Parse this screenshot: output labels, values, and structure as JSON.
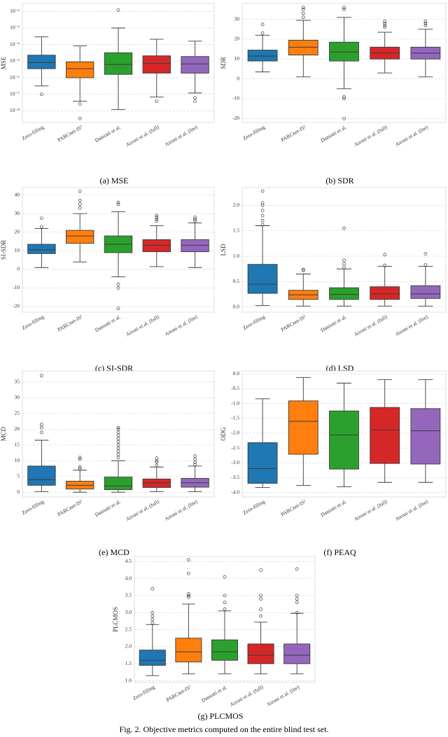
{
  "chart_data": [
    {
      "type": "box",
      "caption": "(a) MSE",
      "ylabel": "MSE",
      "log_y": true,
      "grid": true,
      "categories": [
        "Zero-filling",
        "PARCnet-IS²",
        "Daniotti et al.",
        "Aironi et al. (full)",
        "Aironi et al. (lite)"
      ],
      "colors": [
        "#1f77b4",
        "#ff7f0e",
        "#2ca02c",
        "#d62728",
        "#9467bd"
      ],
      "ylim": [
        2e-09,
        0.03
      ],
      "yticks": [
        {
          "value": 0.01,
          "label": "10⁻²"
        },
        {
          "value": 0.001,
          "label": "10⁻³"
        },
        {
          "value": 0.0001,
          "label": "10⁻⁴"
        },
        {
          "value": 1e-05,
          "label": "10⁻⁵"
        },
        {
          "value": 1e-06,
          "label": "10⁻⁶"
        },
        {
          "value": 1e-07,
          "label": "10⁻⁷"
        },
        {
          "value": 1e-08,
          "label": "10⁻⁸"
        }
      ],
      "boxes": [
        {
          "high": 0.00029,
          "q3": 2.3e-05,
          "median": 8.3e-06,
          "q1": 3.5e-06,
          "low": 3.2e-07,
          "outliers": [
            1e-07
          ]
        },
        {
          "high": 8.3e-05,
          "q3": 9.1e-06,
          "median": 3.5e-06,
          "q1": 1e-06,
          "low": 3.8e-08,
          "outliers": [
            2.6e-08,
            3.5e-09
          ]
        },
        {
          "high": 0.001,
          "q3": 3.2e-05,
          "median": 6.3e-06,
          "q1": 1.6e-06,
          "low": 1.2e-08,
          "outliers": [
            0.012
          ]
        },
        {
          "high": 0.00021,
          "q3": 2.1e-05,
          "median": 7.4e-06,
          "q1": 1.9e-06,
          "low": 6.8e-08,
          "outliers": [
            3.8e-08
          ]
        },
        {
          "high": 0.00016,
          "q3": 1.9e-05,
          "median": 6.8e-06,
          "q1": 1.9e-06,
          "low": 1.2e-07,
          "outliers": [
            6.2e-08,
            3.8e-08
          ]
        }
      ]
    },
    {
      "type": "box",
      "caption": "(b) SDR",
      "ylabel": "SDR",
      "grid": true,
      "categories": [
        "Zero-filling",
        "PARCnet-IS²",
        "Daniotti et al.",
        "Aironi et al. (full)",
        "Aironi et al. (lite)"
      ],
      "colors": [
        "#1f77b4",
        "#ff7f0e",
        "#2ca02c",
        "#d62728",
        "#9467bd"
      ],
      "ylim": [
        -22,
        38
      ],
      "yticks": [
        -20,
        -10,
        0,
        10,
        20,
        30
      ],
      "boxes": [
        {
          "high": 22,
          "q3": 14.5,
          "median": 11.5,
          "q1": 9,
          "low": 3.5,
          "outliers": [
            23,
            27.5
          ]
        },
        {
          "high": 29.5,
          "q3": 19.5,
          "median": 16,
          "q1": 12,
          "low": 1,
          "outliers": [
            31,
            33,
            35,
            36
          ]
        },
        {
          "high": 31,
          "q3": 18.5,
          "median": 13.5,
          "q1": 9,
          "low": -5,
          "outliers": [
            35,
            36,
            -9,
            -10,
            -20
          ]
        },
        {
          "high": 23.5,
          "q3": 16,
          "median": 13,
          "q1": 10,
          "low": 3,
          "outliers": [
            26,
            27,
            28,
            29
          ]
        },
        {
          "high": 25,
          "q3": 16,
          "median": 13,
          "q1": 10,
          "low": 1,
          "outliers": [
            27,
            28,
            29
          ]
        }
      ]
    },
    {
      "type": "box",
      "caption": "(c) SI-SDR",
      "ylabel": "SI-SDR",
      "grid": true,
      "categories": [
        "Zero-filling",
        "PARCnet-IS²",
        "Daniotti et al.",
        "Aironi et al. (full)",
        "Aironi et al. (lite)"
      ],
      "colors": [
        "#1f77b4",
        "#ff7f0e",
        "#2ca02c",
        "#d62728",
        "#9467bd"
      ],
      "ylim": [
        -23,
        44
      ],
      "yticks": [
        -20,
        -10,
        0,
        10,
        20,
        30,
        40
      ],
      "boxes": [
        {
          "high": 22,
          "q3": 13.5,
          "median": 10.5,
          "q1": 8.5,
          "low": 1,
          "outliers": [
            23,
            27.5
          ]
        },
        {
          "high": 30,
          "q3": 21,
          "median": 18,
          "q1": 14,
          "low": 4,
          "outliers": [
            33,
            35,
            37,
            42
          ]
        },
        {
          "high": 31,
          "q3": 18,
          "median": 13.5,
          "q1": 9,
          "low": -4,
          "outliers": [
            35,
            36,
            -8,
            -10,
            -21
          ]
        },
        {
          "high": 23.5,
          "q3": 16,
          "median": 13,
          "q1": 9.5,
          "low": 1.5,
          "outliers": [
            26,
            27,
            28,
            29
          ]
        },
        {
          "high": 25,
          "q3": 16,
          "median": 13,
          "q1": 9.5,
          "low": 1,
          "outliers": [
            26,
            27,
            28
          ]
        }
      ]
    },
    {
      "type": "box",
      "caption": "(d) LSD",
      "ylabel": "LSD",
      "grid": true,
      "categories": [
        "Zero-filling",
        "PARCnet-IS²",
        "Daniotti et al.",
        "Aironi et al. (full)",
        "Aironi et al. (lite)"
      ],
      "colors": [
        "#1f77b4",
        "#ff7f0e",
        "#2ca02c",
        "#d62728",
        "#9467bd"
      ],
      "ylim": [
        -0.1,
        2.35
      ],
      "yticks": [
        {
          "value": 0,
          "label": "0.0"
        },
        0.5,
        {
          "value": 1,
          "label": "1.0"
        },
        1.5,
        {
          "value": 2,
          "label": "2.0"
        }
      ],
      "boxes": [
        {
          "high": 1.6,
          "q3": 0.84,
          "median": 0.45,
          "q1": 0.27,
          "low": 0.03,
          "outliers": [
            1.62,
            1.7,
            1.8,
            1.9,
            2.0,
            2.05,
            2.28
          ]
        },
        {
          "high": 0.65,
          "q3": 0.33,
          "median": 0.24,
          "q1": 0.15,
          "low": 0.02,
          "outliers": [
            0.72,
            0.74
          ]
        },
        {
          "high": 0.75,
          "q3": 0.38,
          "median": 0.25,
          "q1": 0.15,
          "low": 0.02,
          "outliers": [
            0.78,
            0.85,
            0.92,
            1.55
          ]
        },
        {
          "high": 0.8,
          "q3": 0.4,
          "median": 0.26,
          "q1": 0.15,
          "low": 0.02,
          "outliers": [
            0.82,
            1.03
          ]
        },
        {
          "high": 0.8,
          "q3": 0.42,
          "median": 0.26,
          "q1": 0.17,
          "low": 0.02,
          "outliers": [
            0.83,
            1.05
          ]
        }
      ]
    },
    {
      "type": "box",
      "caption": "(e) MCD",
      "ylabel": "MCD",
      "grid": true,
      "categories": [
        "Zero-filling",
        "PARCnet-IS²",
        "Daniotti et al.",
        "Aironi et al. (full)",
        "Aironi et al. (lite)"
      ],
      "colors": [
        "#1f77b4",
        "#ff7f0e",
        "#2ca02c",
        "#d62728",
        "#9467bd"
      ],
      "ylim": [
        -1.5,
        38.5
      ],
      "yticks": [
        0,
        5,
        10,
        15,
        20,
        25,
        30,
        35
      ],
      "boxes": [
        {
          "high": 16.5,
          "q3": 8.3,
          "median": 4,
          "q1": 2.2,
          "low": 0.2,
          "outliers": [
            19,
            20.5,
            21.5,
            37
          ]
        },
        {
          "high": 7,
          "q3": 3.5,
          "median": 2.2,
          "q1": 1,
          "low": 0,
          "outliers": [
            7.5,
            8,
            10.5,
            11
          ]
        },
        {
          "high": 10,
          "q3": 4.8,
          "median": 2,
          "q1": 0.8,
          "low": 0,
          "outliers": [
            11,
            12,
            13,
            14,
            15,
            16,
            17,
            18,
            19,
            20,
            20.5
          ]
        },
        {
          "high": 8,
          "q3": 4.2,
          "median": 3,
          "q1": 1.5,
          "low": 0.2,
          "outliers": [
            8.5,
            9.5,
            10,
            10.8
          ]
        },
        {
          "high": 8.3,
          "q3": 4.4,
          "median": 3,
          "q1": 1.6,
          "low": 0.2,
          "outliers": [
            8.8,
            9.5,
            10.5,
            11.5
          ]
        }
      ]
    },
    {
      "type": "box",
      "caption": "(f) PEAQ",
      "ylabel": "ODG",
      "grid": true,
      "categories": [
        "Zero-filling",
        "PARCnet-IS²",
        "Daniotti et al.",
        "Aironi et al. (full)",
        "Aironi et al. (lite)"
      ],
      "colors": [
        "#1f77b4",
        "#ff7f0e",
        "#2ca02c",
        "#d62728",
        "#9467bd"
      ],
      "ylim": [
        -4.15,
        0.1
      ],
      "yticks": [
        {
          "value": -4,
          "label": "-4.0"
        },
        -3.5,
        {
          "value": -3,
          "label": "-3.0"
        },
        -2.5,
        {
          "value": -2,
          "label": "-2.0"
        },
        -1.5,
        {
          "value": -1,
          "label": "-1.0"
        },
        -0.5,
        {
          "value": 0,
          "label": "0.0"
        }
      ],
      "boxes": [
        {
          "high": -0.84,
          "q3": -2.32,
          "median": -3.19,
          "q1": -3.69,
          "low": -3.83,
          "outliers": []
        },
        {
          "high": -0.12,
          "q3": -0.91,
          "median": -1.6,
          "q1": -2.71,
          "low": -3.76,
          "outliers": []
        },
        {
          "high": -0.31,
          "q3": -1.25,
          "median": -2.06,
          "q1": -3.21,
          "low": -3.81,
          "outliers": []
        },
        {
          "high": -0.19,
          "q3": -1.13,
          "median": -1.89,
          "q1": -3.02,
          "low": -3.66,
          "outliers": []
        },
        {
          "high": -0.19,
          "q3": -1.17,
          "median": -1.92,
          "q1": -3.04,
          "low": -3.66,
          "outliers": []
        }
      ]
    },
    {
      "type": "box",
      "caption": "(g) PLCMOS",
      "ylabel": "PLCMOS",
      "grid": true,
      "categories": [
        "Zero-filling",
        "PARCnet-IS²",
        "Daniotti et al.",
        "Aironi et al. (full)",
        "Aironi et al. (lite)"
      ],
      "colors": [
        "#1f77b4",
        "#ff7f0e",
        "#2ca02c",
        "#d62728",
        "#9467bd"
      ],
      "ylim": [
        0.95,
        4.65
      ],
      "yticks": [
        {
          "value": 1,
          "label": "1.0"
        },
        1.5,
        {
          "value": 2,
          "label": "2.0"
        },
        2.5,
        {
          "value": 3,
          "label": "3.0"
        },
        3.5,
        {
          "value": 4,
          "label": "4.0"
        },
        4.5
      ],
      "boxes": [
        {
          "high": 2.65,
          "q3": 1.9,
          "median": 1.6,
          "q1": 1.45,
          "low": 1.15,
          "outliers": [
            2.7,
            2.8,
            2.9,
            3.0,
            3.7
          ]
        },
        {
          "high": 3.25,
          "q3": 2.25,
          "median": 1.85,
          "q1": 1.55,
          "low": 1.2,
          "outliers": [
            3.45,
            3.5,
            3.55,
            4.15,
            4.55
          ]
        },
        {
          "high": 3.05,
          "q3": 2.2,
          "median": 1.85,
          "q1": 1.6,
          "low": 1.2,
          "outliers": [
            3.1,
            3.3,
            3.5,
            4.05
          ]
        },
        {
          "high": 2.72,
          "q3": 2.08,
          "median": 1.75,
          "q1": 1.5,
          "low": 1.2,
          "outliers": [
            2.9,
            3.1,
            3.4,
            3.5,
            4.25
          ]
        },
        {
          "high": 2.98,
          "q3": 2.08,
          "median": 1.75,
          "q1": 1.5,
          "low": 1.2,
          "outliers": [
            3.0,
            3.3,
            3.4,
            3.5,
            4.28
          ]
        }
      ]
    }
  ],
  "figure_caption": "Fig. 2.  Objective metrics computed on the entire blind test set."
}
